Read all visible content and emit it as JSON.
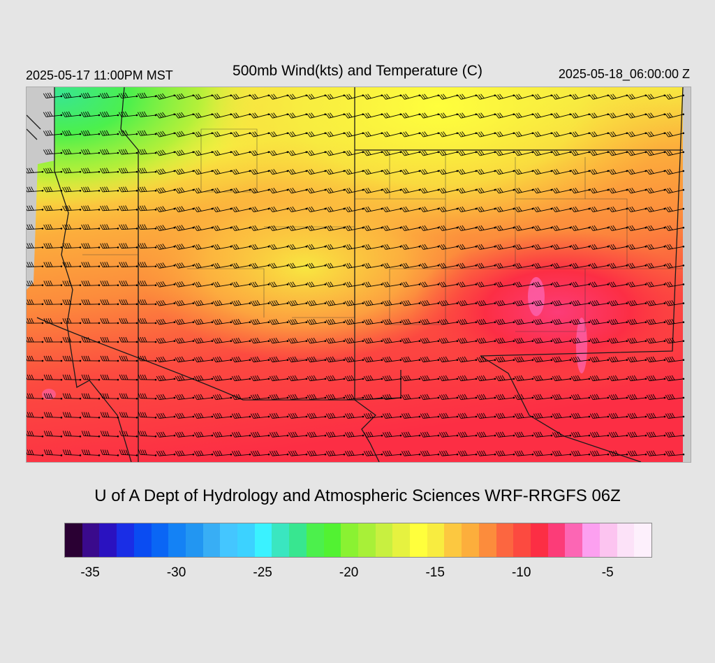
{
  "header": {
    "local_time": "2025-05-17 11:00PM MST",
    "title": "500mb Wind(kts) and Temperature (C)",
    "valid_time": "2025-05-18_06:00:00 Z"
  },
  "credit": "U of A Dept of Hydrology and Atmospheric Sciences WRF-RRGFS 06Z",
  "colorbar": {
    "colors": [
      "#2a0033",
      "#3a0a8c",
      "#2a12c0",
      "#1a2ee6",
      "#0a4cf2",
      "#0a66f5",
      "#1482f5",
      "#2296f2",
      "#38aef5",
      "#44c6ff",
      "#3cd2ff",
      "#3af2ff",
      "#3ae6c0",
      "#38e690",
      "#4cf04c",
      "#52f232",
      "#8af232",
      "#a8f038",
      "#c8f040",
      "#e6f240",
      "#ffff3c",
      "#f8ec40",
      "#fcc840",
      "#fcae3c",
      "#fc8c3c",
      "#fc6640",
      "#fc4a40",
      "#fc2e44",
      "#fc3c78",
      "#fc66b4",
      "#fca0f0",
      "#fcc4f0",
      "#fce2f8",
      "#fdf0fc"
    ],
    "tick_labels": [
      "-35",
      "-30",
      "-25",
      "-20",
      "-15",
      "-10",
      "-5"
    ],
    "tick_values": [
      -35,
      -30,
      -25,
      -20,
      -15,
      -10,
      -5
    ]
  },
  "map": {
    "background_color": "#c9c9c9",
    "field_colors": {
      "warm": "#fc4a40",
      "orange": "#fc8c3c",
      "yellow": "#f5f040",
      "green": "#4cf04c",
      "pink": "#fc3c78"
    },
    "barb_color": "#000000",
    "border_color": "#1a1a1a"
  }
}
